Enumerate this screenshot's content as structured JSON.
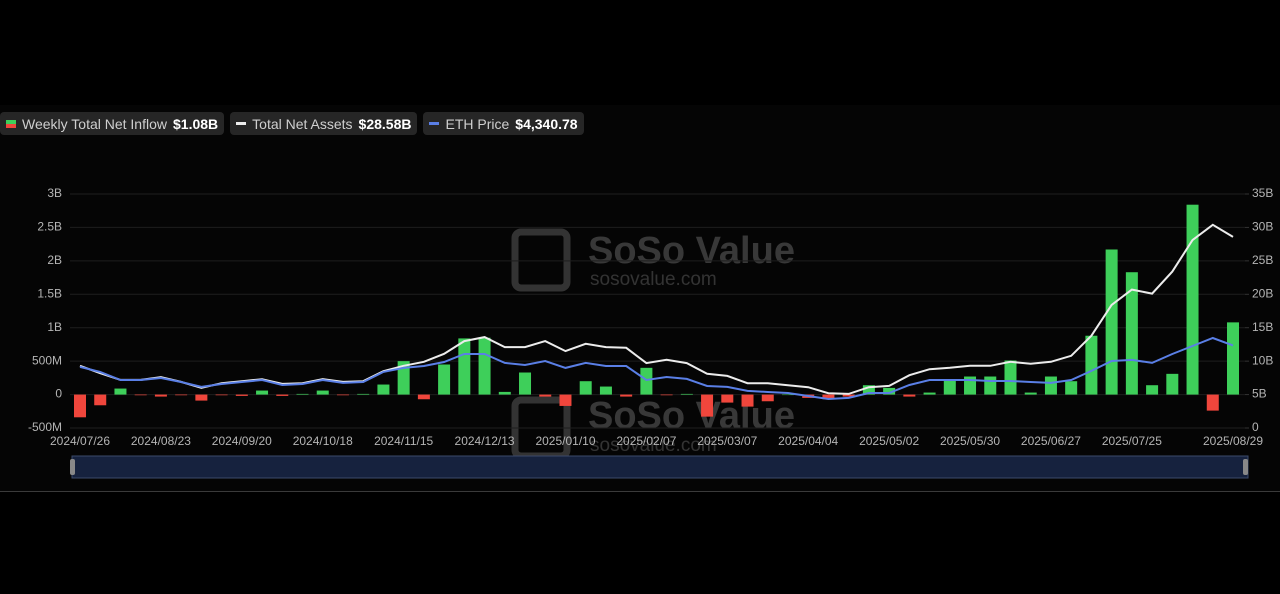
{
  "legend_values": [
    "$1.08B",
    "$28.58B",
    "$4,340.78"
  ],
  "watermark": {
    "text": "SoSo Value",
    "url": "sosovalue.com"
  },
  "chart_data": {
    "type": "bar",
    "categories": [
      "2024/07/26",
      null,
      null,
      null,
      "2024/08/23",
      null,
      null,
      null,
      "2024/09/20",
      null,
      null,
      null,
      "2024/10/18",
      null,
      null,
      null,
      "2024/11/15",
      null,
      null,
      null,
      "2024/12/13",
      null,
      null,
      null,
      "2025/01/10",
      null,
      null,
      null,
      "2025/02/07",
      null,
      null,
      null,
      "2025/03/07",
      null,
      null,
      null,
      "2025/04/04",
      null,
      null,
      null,
      "2025/05/02",
      null,
      null,
      null,
      "2025/05/30",
      null,
      null,
      null,
      "2025/06/27",
      null,
      null,
      null,
      "2025/07/25",
      null,
      null,
      null,
      null,
      "2025/08/29"
    ],
    "series": [
      {
        "name": "Weekly Total Net Inflow",
        "type": "bar",
        "color": "#3ecf5a",
        "negative_color": "#f0463c",
        "values": [
          -0.34,
          -0.16,
          0.09,
          -0.01,
          -0.03,
          -0.01,
          -0.09,
          -0.01,
          -0.02,
          0.06,
          -0.02,
          0.01,
          0.06,
          -0.01,
          0.01,
          0.15,
          0.5,
          -0.07,
          0.45,
          0.84,
          0.85,
          0.04,
          0.33,
          -0.03,
          -0.17,
          0.2,
          0.12,
          -0.03,
          0.4,
          -0.01,
          0.01,
          -0.33,
          -0.12,
          -0.18,
          -0.1,
          0,
          -0.05,
          -0.07,
          -0.03,
          0.14,
          0.1,
          -0.03,
          0.03,
          0.22,
          0.27,
          0.27,
          0.51,
          0.03,
          0.27,
          0.2,
          0.88,
          2.17,
          1.83,
          0.14,
          0.31,
          2.84,
          -0.24,
          1.08
        ]
      },
      {
        "name": "Total Net Assets",
        "type": "line",
        "axis": "y2",
        "color": "#ececec",
        "values": [
          9.3,
          8.2,
          7.2,
          7.2,
          7.6,
          6.9,
          6.0,
          6.7,
          7.0,
          7.3,
          6.6,
          6.7,
          7.3,
          6.9,
          7.0,
          8.5,
          9.3,
          9.9,
          11.1,
          13.0,
          13.6,
          12.1,
          12.1,
          13.0,
          11.5,
          12.6,
          12.1,
          12.0,
          9.7,
          10.2,
          9.7,
          8.1,
          7.8,
          6.7,
          6.7,
          6.4,
          6.1,
          5.2,
          5.1,
          6.1,
          6.3,
          7.9,
          8.8,
          9.0,
          9.3,
          9.3,
          9.9,
          9.6,
          9.9,
          10.8,
          13.8,
          18.4,
          20.7,
          20.1,
          23.4,
          28.1,
          30.4,
          28.58
        ]
      },
      {
        "name": "ETH Price",
        "type": "line",
        "axis": "y3",
        "color": "#5a7fe6",
        "values": [
          3210,
          2950,
          2525,
          2525,
          2630,
          2420,
          2160,
          2315,
          2420,
          2525,
          2260,
          2315,
          2525,
          2370,
          2420,
          2950,
          3160,
          3260,
          3470,
          3890,
          3890,
          3420,
          3310,
          3520,
          3160,
          3420,
          3260,
          3260,
          2525,
          2680,
          2580,
          2210,
          2160,
          1950,
          1890,
          1840,
          1680,
          1525,
          1580,
          1840,
          1840,
          2260,
          2525,
          2525,
          2525,
          2470,
          2470,
          2420,
          2370,
          2525,
          3000,
          3520,
          3580,
          3420,
          3890,
          4310,
          4730,
          4340.78
        ]
      }
    ],
    "ylim": [
      -0.5,
      3
    ],
    "yticks": [
      {
        "value": -0.5,
        "label": "-500M"
      },
      0,
      {
        "value": 0.5,
        "label": "500M"
      },
      {
        "value": 1,
        "label": "1B"
      },
      {
        "value": 1.5,
        "label": "1.5B"
      },
      {
        "value": 2,
        "label": "2B"
      },
      {
        "value": 2.5,
        "label": "2.5B"
      },
      {
        "value": 3,
        "label": "3B"
      }
    ],
    "y2lim": [
      0,
      35
    ],
    "y2ticks": [
      0,
      {
        "value": 5,
        "label": "5B"
      },
      {
        "value": 10,
        "label": "10B"
      },
      {
        "value": 15,
        "label": "15B"
      },
      {
        "value": 20,
        "label": "20B"
      },
      {
        "value": 25,
        "label": "25B"
      },
      {
        "value": 30,
        "label": "30B"
      },
      {
        "value": 35,
        "label": "35B"
      }
    ],
    "y3lim": [
      0,
      12300
    ],
    "grid": true
  }
}
